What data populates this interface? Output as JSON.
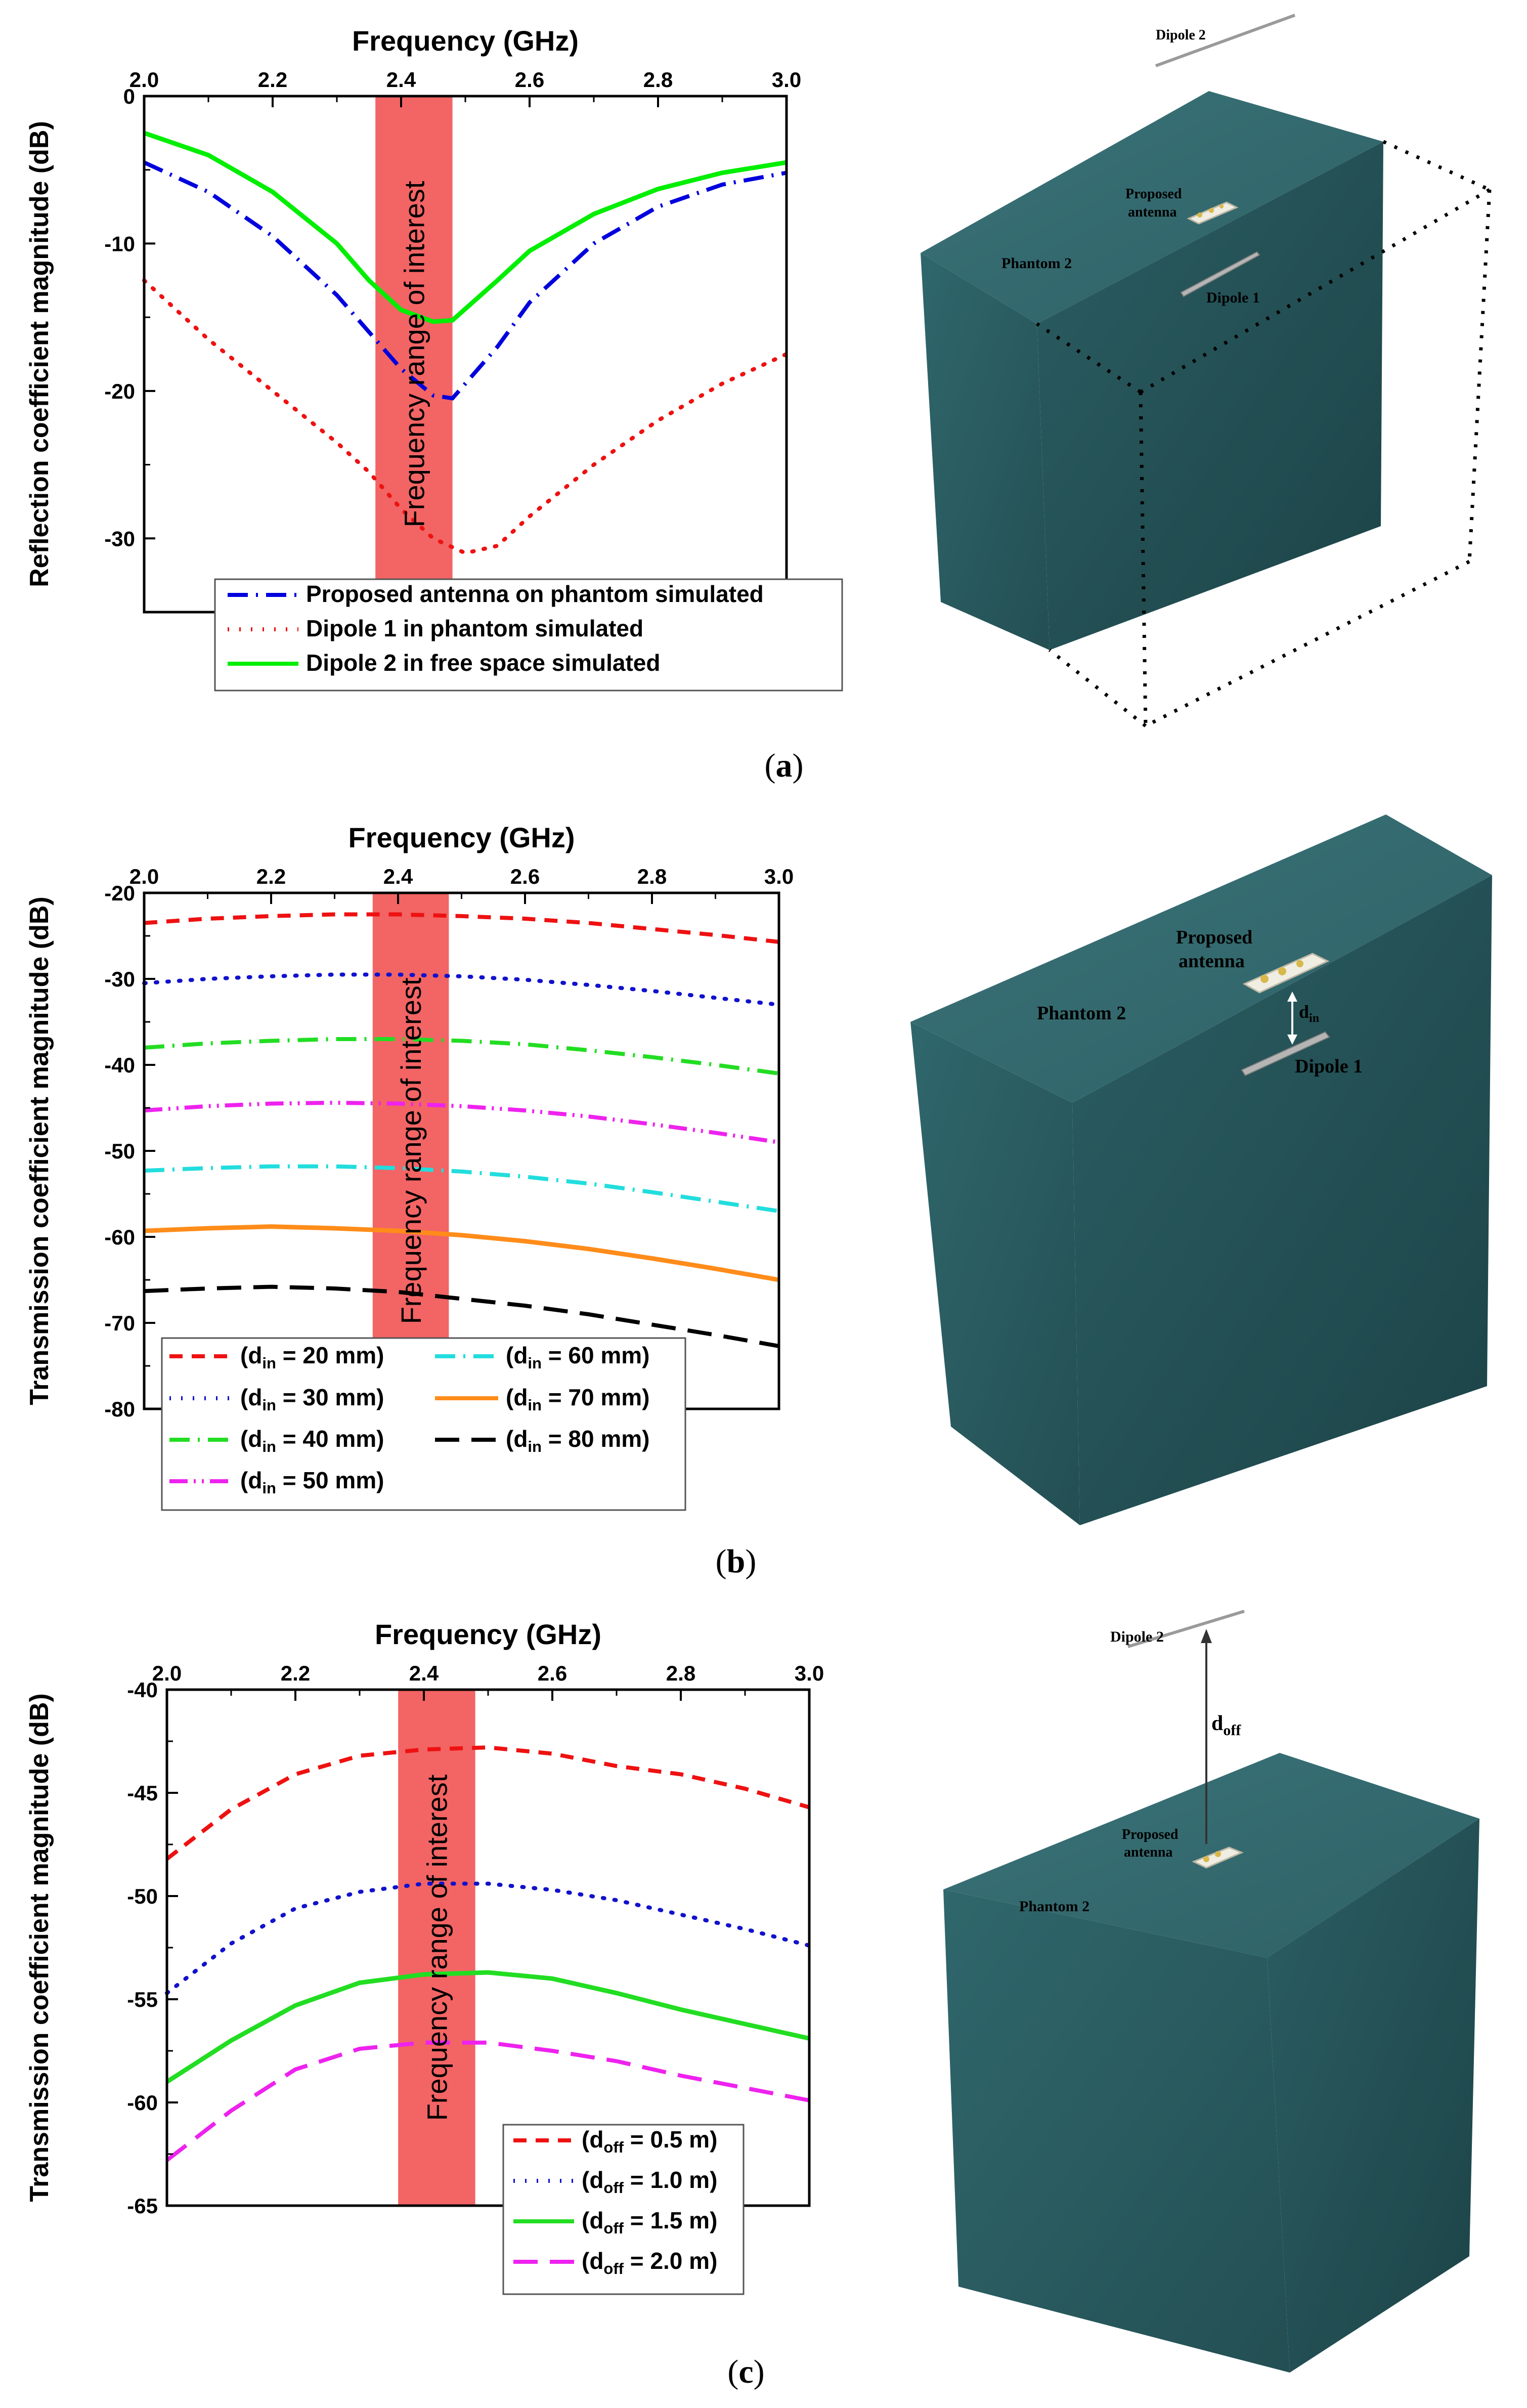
{
  "chart_data": [
    {
      "id": "a",
      "type": "line",
      "panel_label": "a",
      "xlabel": "Frequency (GHz)",
      "ylabel": "Reflection coefficient magnitude (dB)",
      "xlim": [
        2.0,
        3.0
      ],
      "ylim": [
        -35,
        0
      ],
      "xticks": [
        2.0,
        2.2,
        2.4,
        2.6,
        2.8,
        3.0
      ],
      "xtick_labels": [
        "2.0",
        "2.2",
        "2.4",
        "2.6",
        "2.8",
        "3.0"
      ],
      "yticks": [
        0,
        -10,
        -20,
        -30
      ],
      "ytick_labels": [
        "0",
        "-10",
        "-20",
        "-30"
      ],
      "band": {
        "x0": 2.36,
        "x1": 2.48,
        "label": "Frequency range of interest",
        "color": "#f25757"
      },
      "legend": [
        {
          "label": "Proposed antenna on phantom simulated"
        },
        {
          "label": "Dipole 1 in phantom simulated"
        },
        {
          "label": "Dipole 2 in free space simulated"
        }
      ],
      "series": [
        {
          "name": "Proposed antenna on phantom simulated",
          "color": "#0000dd",
          "dash": "dashdot",
          "x": [
            2.0,
            2.1,
            2.2,
            2.3,
            2.35,
            2.4,
            2.45,
            2.48,
            2.55,
            2.6,
            2.7,
            2.8,
            2.9,
            3.0
          ],
          "y": [
            -4.5,
            -6.5,
            -9.5,
            -13.5,
            -16,
            -18.5,
            -20.3,
            -20.5,
            -17,
            -14,
            -10,
            -7.5,
            -6,
            -5.2
          ]
        },
        {
          "name": "Dipole 1 in phantom simulated",
          "color": "#ee1111",
          "dash": "dot",
          "x": [
            2.0,
            2.1,
            2.2,
            2.3,
            2.35,
            2.4,
            2.45,
            2.5,
            2.55,
            2.6,
            2.7,
            2.8,
            2.9,
            3.0
          ],
          "y": [
            -12.5,
            -16.5,
            -20,
            -23.5,
            -25.5,
            -28,
            -30,
            -31,
            -30.5,
            -28.5,
            -25,
            -22,
            -19.5,
            -17.5
          ]
        },
        {
          "name": "Dipole 2 in free space simulated",
          "color": "#00ee00",
          "dash": "solid",
          "x": [
            2.0,
            2.1,
            2.2,
            2.3,
            2.35,
            2.4,
            2.45,
            2.48,
            2.55,
            2.6,
            2.7,
            2.8,
            2.9,
            3.0
          ],
          "y": [
            -2.5,
            -4,
            -6.5,
            -10,
            -12.5,
            -14.5,
            -15.3,
            -15.2,
            -12.5,
            -10.5,
            -8,
            -6.3,
            -5.2,
            -4.5
          ]
        }
      ]
    },
    {
      "id": "b",
      "type": "line",
      "panel_label": "b",
      "xlabel": "Frequency (GHz)",
      "ylabel": "Transmission coefficient magnitude (dB)",
      "xlim": [
        2.0,
        3.0
      ],
      "ylim": [
        -80,
        -20
      ],
      "xticks": [
        2.0,
        2.2,
        2.4,
        2.6,
        2.8,
        3.0
      ],
      "xtick_labels": [
        "2.0",
        "2.2",
        "2.4",
        "2.6",
        "2.8",
        "3.0"
      ],
      "yticks": [
        -20,
        -30,
        -40,
        -50,
        -60,
        -70,
        -80
      ],
      "ytick_labels": [
        "-20",
        "-30",
        "-40",
        "-50",
        "-60",
        "-70",
        "-80"
      ],
      "band": {
        "x0": 2.36,
        "x1": 2.48,
        "label": "Frequency range of interest",
        "color": "#f25757"
      },
      "legend": [
        {
          "pre": "(d",
          "sub": "in",
          "post": " = 20 mm)"
        },
        {
          "pre": "(d",
          "sub": "in",
          "post": " = 30 mm)"
        },
        {
          "pre": "(d",
          "sub": "in",
          "post": " = 40 mm)"
        },
        {
          "pre": "(d",
          "sub": "in",
          "post": " = 50 mm)"
        },
        {
          "pre": "(d",
          "sub": "in",
          "post": " = 60 mm)"
        },
        {
          "pre": "(d",
          "sub": "in",
          "post": " = 70 mm)"
        },
        {
          "pre": "(d",
          "sub": "in",
          "post": " = 80 mm)"
        }
      ],
      "series": [
        {
          "name": "din = 20 mm",
          "color": "#ee1111",
          "dash": "dash",
          "x": [
            2.0,
            2.1,
            2.2,
            2.3,
            2.4,
            2.5,
            2.6,
            2.7,
            2.8,
            2.9,
            3.0
          ],
          "y": [
            -23.5,
            -23,
            -22.7,
            -22.5,
            -22.5,
            -22.7,
            -23,
            -23.5,
            -24.2,
            -24.9,
            -25.7
          ]
        },
        {
          "name": "din = 30 mm",
          "color": "#1111cc",
          "dash": "dot",
          "x": [
            2.0,
            2.1,
            2.2,
            2.3,
            2.4,
            2.5,
            2.6,
            2.7,
            2.8,
            2.9,
            3.0
          ],
          "y": [
            -30.5,
            -30,
            -29.7,
            -29.5,
            -29.5,
            -29.7,
            -30.1,
            -30.7,
            -31.4,
            -32.2,
            -33
          ]
        },
        {
          "name": "din = 40 mm",
          "color": "#22dd22",
          "dash": "dashdot",
          "x": [
            2.0,
            2.1,
            2.2,
            2.3,
            2.4,
            2.5,
            2.6,
            2.7,
            2.8,
            2.9,
            3.0
          ],
          "y": [
            -38,
            -37.5,
            -37.2,
            -37,
            -37,
            -37.2,
            -37.6,
            -38.3,
            -39.1,
            -40,
            -41
          ]
        },
        {
          "name": "din = 50 mm",
          "color": "#ee22ee",
          "dash": "dashdotdot",
          "x": [
            2.0,
            2.1,
            2.2,
            2.3,
            2.4,
            2.5,
            2.6,
            2.7,
            2.8,
            2.9,
            3.0
          ],
          "y": [
            -45.3,
            -44.8,
            -44.5,
            -44.4,
            -44.5,
            -44.8,
            -45.3,
            -46,
            -46.9,
            -47.9,
            -49
          ]
        },
        {
          "name": "din = 60 mm",
          "color": "#22dddd",
          "dash": "dashdot",
          "x": [
            2.0,
            2.1,
            2.2,
            2.3,
            2.4,
            2.5,
            2.6,
            2.7,
            2.8,
            2.9,
            3.0
          ],
          "y": [
            -52.3,
            -52,
            -51.8,
            -51.8,
            -52,
            -52.4,
            -53,
            -53.8,
            -54.8,
            -55.9,
            -57
          ]
        },
        {
          "name": "din = 70 mm",
          "color": "#ff8c1a",
          "dash": "solid",
          "x": [
            2.0,
            2.1,
            2.2,
            2.3,
            2.4,
            2.5,
            2.6,
            2.7,
            2.8,
            2.9,
            3.0
          ],
          "y": [
            -59.3,
            -59,
            -58.8,
            -59,
            -59.3,
            -59.8,
            -60.5,
            -61.4,
            -62.5,
            -63.7,
            -65
          ]
        },
        {
          "name": "din = 80 mm",
          "color": "#000000",
          "dash": "longdash",
          "x": [
            2.0,
            2.1,
            2.2,
            2.3,
            2.4,
            2.5,
            2.6,
            2.7,
            2.8,
            2.9,
            3.0
          ],
          "y": [
            -66.3,
            -66,
            -65.8,
            -66,
            -66.4,
            -67.2,
            -68,
            -69,
            -70.2,
            -71.4,
            -72.7
          ]
        }
      ]
    },
    {
      "id": "c",
      "type": "line",
      "panel_label": "c",
      "xlabel": "Frequency (GHz)",
      "ylabel": "Transmission coefficient magnitude (dB)",
      "xlim": [
        2.0,
        3.0
      ],
      "ylim": [
        -65,
        -40
      ],
      "xticks": [
        2.0,
        2.2,
        2.4,
        2.6,
        2.8,
        3.0
      ],
      "xtick_labels": [
        "2.0",
        "2.2",
        "2.4",
        "2.6",
        "2.8",
        "3.0"
      ],
      "yticks": [
        -40,
        -45,
        -50,
        -55,
        -60,
        -65
      ],
      "ytick_labels": [
        "-40",
        "-45",
        "-50",
        "-55",
        "-60",
        "-65"
      ],
      "band": {
        "x0": 2.36,
        "x1": 2.48,
        "label": "Frequency range of interest",
        "color": "#f25757"
      },
      "legend": [
        {
          "pre": "(d",
          "sub": "off",
          "post": " = 0.5 m)"
        },
        {
          "pre": "(d",
          "sub": "off",
          "post": " = 1.0 m)"
        },
        {
          "pre": "(d",
          "sub": "off",
          "post": " = 1.5 m)"
        },
        {
          "pre": "(d",
          "sub": "off",
          "post": " = 2.0 m)"
        }
      ],
      "series": [
        {
          "name": "doff = 0.5 m",
          "color": "#ee1111",
          "dash": "dash",
          "x": [
            2.0,
            2.1,
            2.2,
            2.3,
            2.4,
            2.5,
            2.6,
            2.7,
            2.8,
            2.9,
            3.0
          ],
          "y": [
            -48.2,
            -45.8,
            -44.1,
            -43.2,
            -42.9,
            -42.8,
            -43.1,
            -43.7,
            -44.1,
            -44.8,
            -45.7
          ]
        },
        {
          "name": "doff = 1.0 m",
          "color": "#1111cc",
          "dash": "dot",
          "x": [
            2.0,
            2.1,
            2.2,
            2.3,
            2.4,
            2.5,
            2.6,
            2.7,
            2.8,
            2.9,
            3.0
          ],
          "y": [
            -54.7,
            -52.3,
            -50.6,
            -49.8,
            -49.4,
            -49.4,
            -49.7,
            -50.2,
            -50.9,
            -51.6,
            -52.4
          ]
        },
        {
          "name": "doff = 1.5 m",
          "color": "#22dd22",
          "dash": "solid",
          "x": [
            2.0,
            2.1,
            2.2,
            2.3,
            2.4,
            2.5,
            2.6,
            2.7,
            2.8,
            2.9,
            3.0
          ],
          "y": [
            -59,
            -57,
            -55.3,
            -54.2,
            -53.8,
            -53.7,
            -54,
            -54.7,
            -55.5,
            -56.2,
            -56.9
          ]
        },
        {
          "name": "doff = 2.0 m",
          "color": "#ee22ee",
          "dash": "longdash",
          "x": [
            2.0,
            2.1,
            2.2,
            2.3,
            2.4,
            2.5,
            2.6,
            2.7,
            2.8,
            2.9,
            3.0
          ],
          "y": [
            -62.8,
            -60.4,
            -58.4,
            -57.4,
            -57.1,
            -57.1,
            -57.5,
            -58,
            -58.7,
            -59.3,
            -59.9
          ]
        }
      ]
    }
  ],
  "scenes": {
    "a": {
      "dipole2": "Dipole 2",
      "antenna_line1": "Proposed",
      "antenna_line2": "antenna",
      "phantom": "Phantom 2",
      "dipole1": "Dipole 1"
    },
    "b": {
      "antenna_line1": "Proposed",
      "antenna_line2": "antenna",
      "phantom": "Phantom 2",
      "dipole1": "Dipole 1",
      "d_main": "d",
      "d_sub": "in"
    },
    "c": {
      "dipole2": "Dipole 2",
      "antenna_line1": "Proposed",
      "antenna_line2": "antenna",
      "phantom": "Phantom 2",
      "d_main": "d",
      "d_sub": "off"
    }
  },
  "colors": {
    "phantom_top": "#2e6368",
    "phantom_front": "#2a5c61",
    "phantom_side": "#1f4a4e",
    "band": "#f25757"
  }
}
